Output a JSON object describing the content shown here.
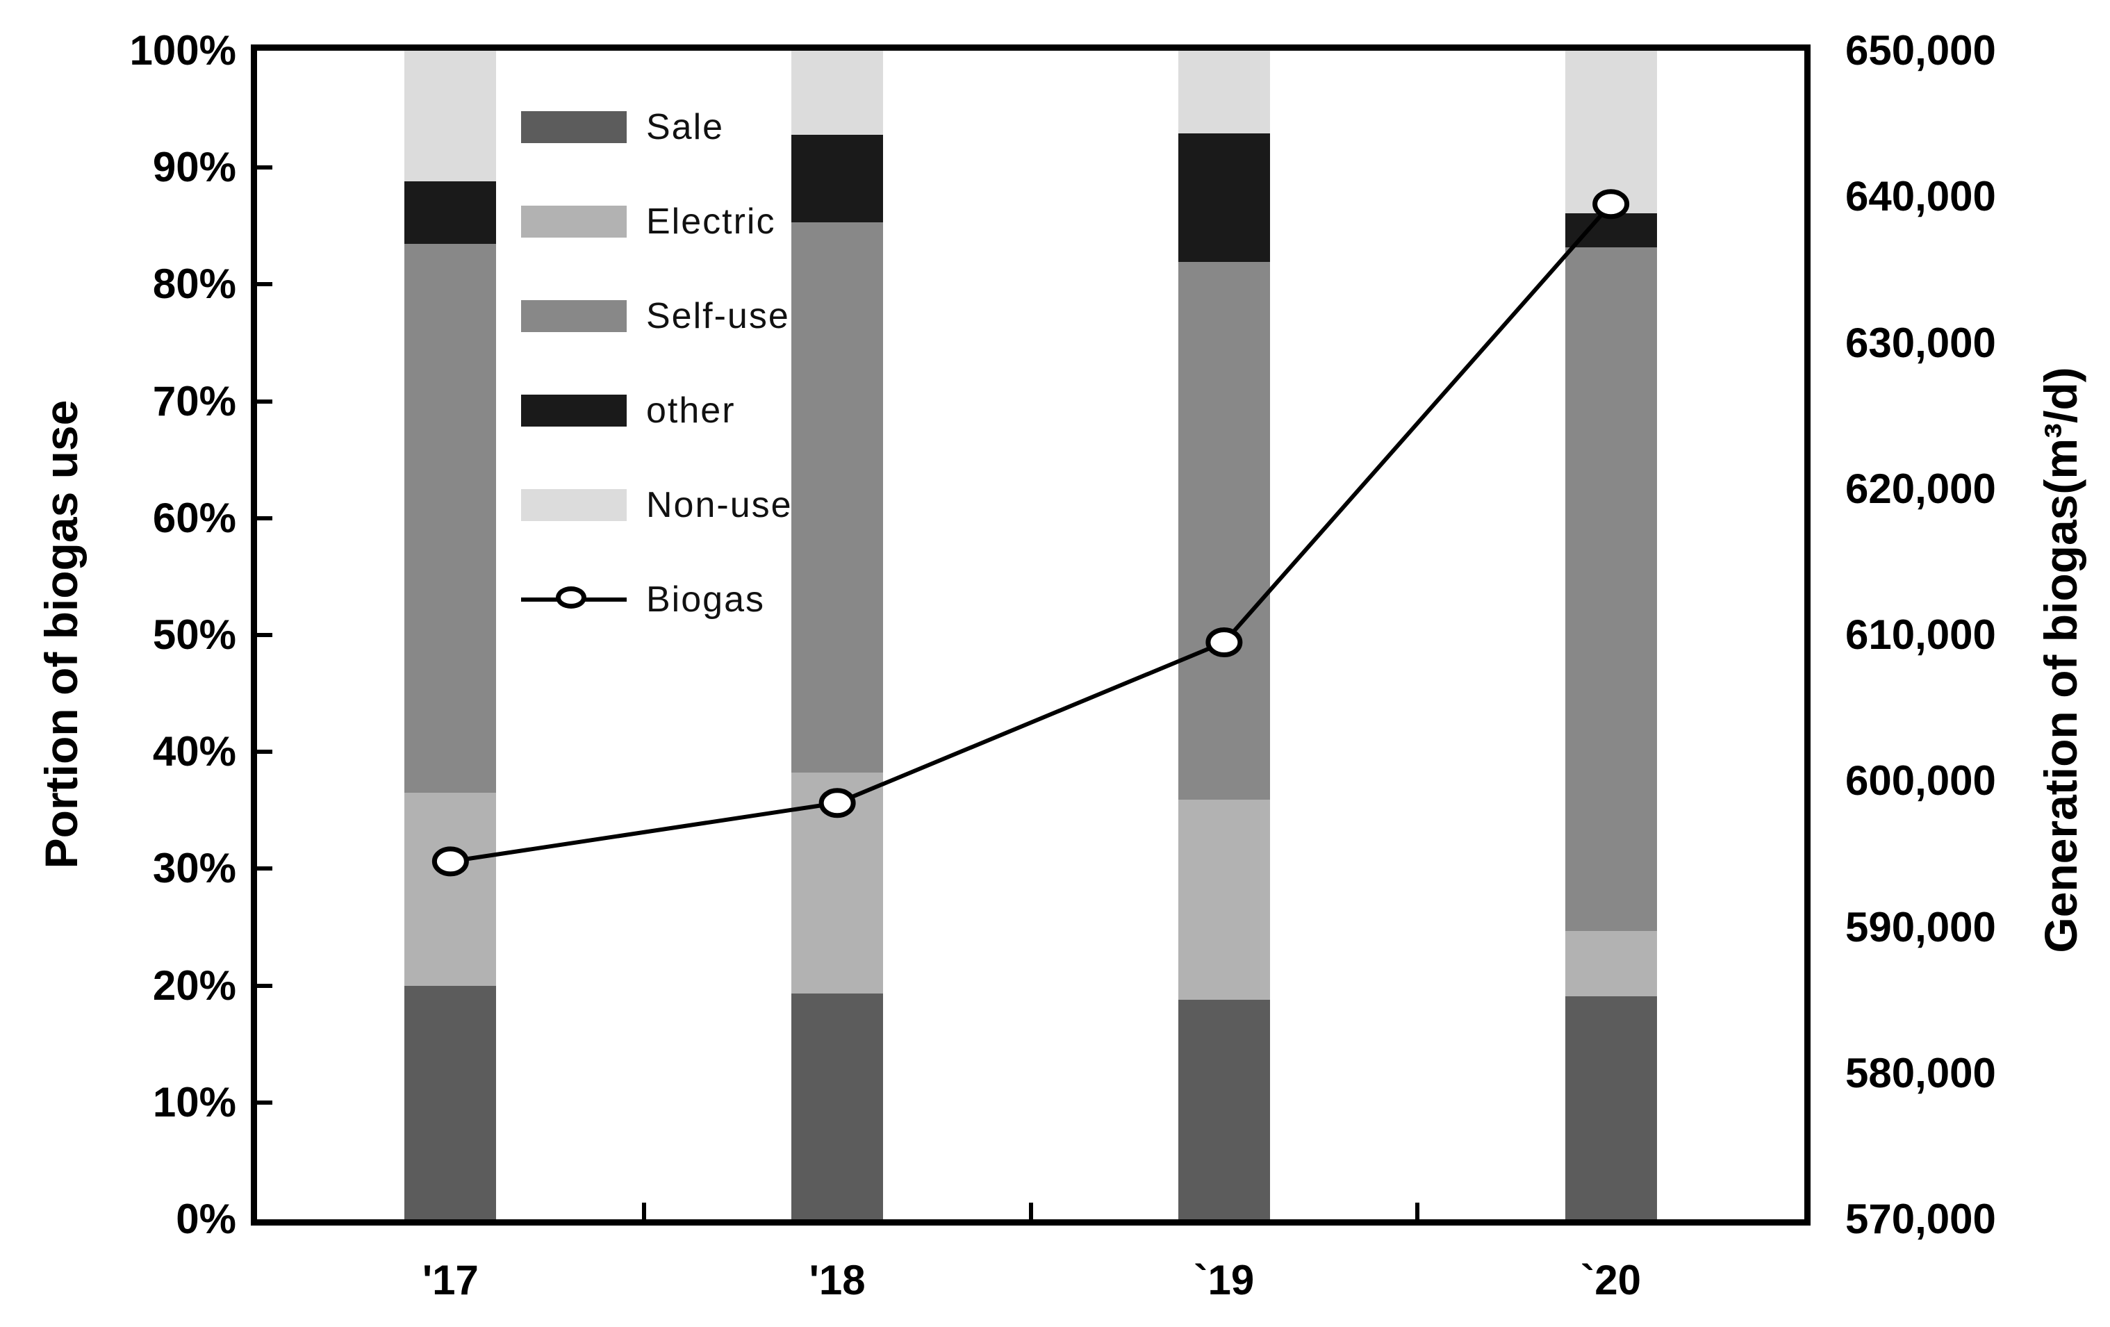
{
  "chart_data": {
    "type": "bar",
    "subtype": "stacked-percent-columns-with-line-overlay",
    "categories": [
      "'17",
      "'18",
      "`19",
      "`20"
    ],
    "series": [
      {
        "name": "Sale",
        "color": "#5c5c5c",
        "values": [
          20.0,
          19.3,
          18.8,
          19.1
        ]
      },
      {
        "name": "Electric",
        "color": "#b2b2b2",
        "values": [
          16.5,
          18.9,
          17.1,
          5.6
        ]
      },
      {
        "name": "Self-use",
        "color": "#888888",
        "values": [
          47.0,
          47.1,
          46.0,
          58.5
        ]
      },
      {
        "name": "other",
        "color": "#1a1a1a",
        "values": [
          5.3,
          7.5,
          11.0,
          2.9
        ]
      },
      {
        "name": "Non-use",
        "color": "#dcdcdc",
        "values": [
          11.2,
          7.2,
          7.1,
          13.9
        ]
      }
    ],
    "line_series": {
      "name": "Biogas",
      "color": "#000000",
      "marker": "open-circle-white-fill",
      "axis": "right",
      "values": [
        594500,
        598500,
        609500,
        639500
      ]
    },
    "left_axis": {
      "title": "Portion of biogas use",
      "min": 0,
      "max": 100,
      "step": 10,
      "tick_labels": [
        "0%",
        "10%",
        "20%",
        "30%",
        "40%",
        "50%",
        "60%",
        "70%",
        "80%",
        "90%",
        "100%"
      ]
    },
    "right_axis": {
      "title": "Generation of biogas(m³/d)",
      "min": 570000,
      "max": 650000,
      "step": 10000,
      "tick_labels": [
        "570,000",
        "580,000",
        "590,000",
        "600,000",
        "610,000",
        "620,000",
        "630,000",
        "640,000",
        "650,000"
      ]
    },
    "legend": {
      "position": "inside-top-left",
      "entries": [
        "Sale",
        "Electric",
        "Self-use",
        "other",
        "Non-use",
        "Biogas"
      ]
    },
    "grid": false,
    "background": "#ffffff"
  }
}
